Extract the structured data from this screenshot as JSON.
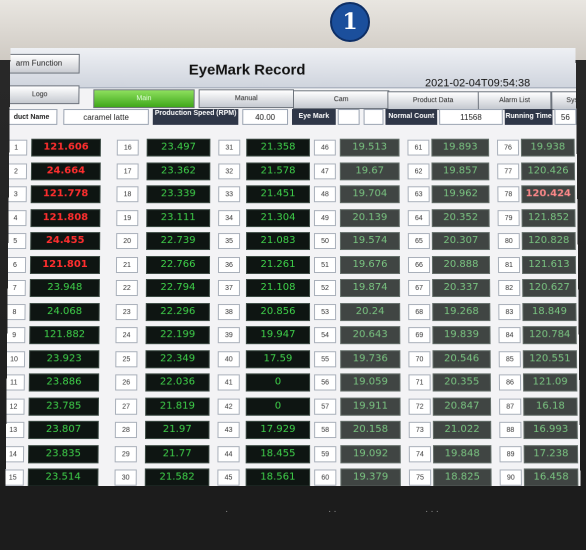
{
  "badge": "1",
  "header": {
    "function_button": "arm Function",
    "title": "EyeMark Record",
    "datetime": "2021-02-04T09:54:38"
  },
  "nav": [
    "Logo",
    "Main",
    "Manual",
    "Cam",
    "Product Data",
    "Alarm List",
    "Sys"
  ],
  "info": {
    "product_name_label": "duct Name",
    "product_name_value": "caramel latte",
    "speed_label": "Production Speed (RPM)",
    "speed_value": "40.00",
    "eyemark_label": "Eye Mark",
    "normal_count_label": "Normal Count",
    "normal_count_value": "11568",
    "running_time_label": "Running Time",
    "running_time_value": "56"
  },
  "columns": [
    {
      "rows": [
        {
          "n": "1",
          "v": "121.606",
          "alarm": true
        },
        {
          "n": "2",
          "v": "24.664",
          "alarm": true
        },
        {
          "n": "3",
          "v": "121.778",
          "alarm": true
        },
        {
          "n": "4",
          "v": "121.808",
          "alarm": true
        },
        {
          "n": "5",
          "v": "24.455",
          "alarm": true
        },
        {
          "n": "6",
          "v": "121.801",
          "alarm": true
        },
        {
          "n": "7",
          "v": "23.948",
          "alarm": false
        },
        {
          "n": "8",
          "v": "24.068",
          "alarm": false
        },
        {
          "n": "9",
          "v": "121.882",
          "alarm": false
        },
        {
          "n": "10",
          "v": "23.923",
          "alarm": false
        },
        {
          "n": "11",
          "v": "23.886",
          "alarm": false
        },
        {
          "n": "12",
          "v": "23.785",
          "alarm": false
        },
        {
          "n": "13",
          "v": "23.807",
          "alarm": false
        },
        {
          "n": "14",
          "v": "23.835",
          "alarm": false
        },
        {
          "n": "15",
          "v": "23.514",
          "alarm": false
        }
      ]
    },
    {
      "rows": [
        {
          "n": "16",
          "v": "23.497",
          "alarm": false
        },
        {
          "n": "17",
          "v": "23.362",
          "alarm": false
        },
        {
          "n": "18",
          "v": "23.339",
          "alarm": false
        },
        {
          "n": "19",
          "v": "23.111",
          "alarm": false
        },
        {
          "n": "20",
          "v": "22.739",
          "alarm": false
        },
        {
          "n": "21",
          "v": "22.766",
          "alarm": false
        },
        {
          "n": "22",
          "v": "22.794",
          "alarm": false
        },
        {
          "n": "23",
          "v": "22.296",
          "alarm": false
        },
        {
          "n": "24",
          "v": "22.199",
          "alarm": false
        },
        {
          "n": "25",
          "v": "22.349",
          "alarm": false
        },
        {
          "n": "26",
          "v": "22.036",
          "alarm": false
        },
        {
          "n": "27",
          "v": "21.819",
          "alarm": false
        },
        {
          "n": "28",
          "v": "21.97",
          "alarm": false
        },
        {
          "n": "29",
          "v": "21.77",
          "alarm": false
        },
        {
          "n": "30",
          "v": "21.582",
          "alarm": false
        }
      ]
    },
    {
      "rows": [
        {
          "n": "31",
          "v": "21.358",
          "alarm": false
        },
        {
          "n": "32",
          "v": "21.578",
          "alarm": false
        },
        {
          "n": "33",
          "v": "21.451",
          "alarm": false
        },
        {
          "n": "34",
          "v": "21.304",
          "alarm": false
        },
        {
          "n": "35",
          "v": "21.083",
          "alarm": false
        },
        {
          "n": "36",
          "v": "21.261",
          "alarm": false
        },
        {
          "n": "37",
          "v": "21.108",
          "alarm": false
        },
        {
          "n": "38",
          "v": "20.856",
          "alarm": false
        },
        {
          "n": "39",
          "v": "19.947",
          "alarm": false
        },
        {
          "n": "40",
          "v": "17.59",
          "alarm": false
        },
        {
          "n": "41",
          "v": "0",
          "alarm": false
        },
        {
          "n": "42",
          "v": "0",
          "alarm": false
        },
        {
          "n": "43",
          "v": "17.929",
          "alarm": false
        },
        {
          "n": "44",
          "v": "18.455",
          "alarm": false
        },
        {
          "n": "45",
          "v": "18.561",
          "alarm": false
        }
      ]
    },
    {
      "rows": [
        {
          "n": "46",
          "v": "19.513",
          "alarm": false
        },
        {
          "n": "47",
          "v": "19.67",
          "alarm": false
        },
        {
          "n": "48",
          "v": "19.704",
          "alarm": false
        },
        {
          "n": "49",
          "v": "20.139",
          "alarm": false
        },
        {
          "n": "50",
          "v": "19.574",
          "alarm": false
        },
        {
          "n": "51",
          "v": "19.676",
          "alarm": false
        },
        {
          "n": "52",
          "v": "19.874",
          "alarm": false
        },
        {
          "n": "53",
          "v": "20.24",
          "alarm": false
        },
        {
          "n": "54",
          "v": "20.643",
          "alarm": false
        },
        {
          "n": "55",
          "v": "19.736",
          "alarm": false
        },
        {
          "n": "56",
          "v": "19.059",
          "alarm": false
        },
        {
          "n": "57",
          "v": "19.911",
          "alarm": false
        },
        {
          "n": "58",
          "v": "20.158",
          "alarm": false
        },
        {
          "n": "59",
          "v": "19.092",
          "alarm": false
        },
        {
          "n": "60",
          "v": "19.379",
          "alarm": false
        }
      ]
    },
    {
      "rows": [
        {
          "n": "61",
          "v": "19.893",
          "alarm": false
        },
        {
          "n": "62",
          "v": "19.857",
          "alarm": false
        },
        {
          "n": "63",
          "v": "19.962",
          "alarm": false
        },
        {
          "n": "64",
          "v": "20.352",
          "alarm": false
        },
        {
          "n": "65",
          "v": "20.307",
          "alarm": false
        },
        {
          "n": "66",
          "v": "20.888",
          "alarm": false
        },
        {
          "n": "67",
          "v": "20.337",
          "alarm": false
        },
        {
          "n": "68",
          "v": "19.268",
          "alarm": false
        },
        {
          "n": "69",
          "v": "19.839",
          "alarm": false
        },
        {
          "n": "70",
          "v": "20.546",
          "alarm": false
        },
        {
          "n": "71",
          "v": "20.355",
          "alarm": false
        },
        {
          "n": "72",
          "v": "20.847",
          "alarm": false
        },
        {
          "n": "73",
          "v": "21.022",
          "alarm": false
        },
        {
          "n": "74",
          "v": "19.848",
          "alarm": false
        },
        {
          "n": "75",
          "v": "18.825",
          "alarm": false
        }
      ]
    },
    {
      "rows": [
        {
          "n": "76",
          "v": "19.938",
          "alarm": false
        },
        {
          "n": "77",
          "v": "120.426",
          "alarm": false
        },
        {
          "n": "78",
          "v": "120.424",
          "alarm": true
        },
        {
          "n": "79",
          "v": "121.852",
          "alarm": false
        },
        {
          "n": "80",
          "v": "120.828",
          "alarm": false
        },
        {
          "n": "81",
          "v": "121.613",
          "alarm": false
        },
        {
          "n": "82",
          "v": "120.627",
          "alarm": false
        },
        {
          "n": "83",
          "v": "18.849",
          "alarm": false
        },
        {
          "n": "84",
          "v": "120.784",
          "alarm": false
        },
        {
          "n": "85",
          "v": "120.551",
          "alarm": false
        },
        {
          "n": "86",
          "v": "121.09",
          "alarm": false
        },
        {
          "n": "87",
          "v": "16.18",
          "alarm": false
        },
        {
          "n": "88",
          "v": "16.993",
          "alarm": false
        },
        {
          "n": "89",
          "v": "17.238",
          "alarm": false
        },
        {
          "n": "90",
          "v": "16.458",
          "alarm": false
        }
      ]
    }
  ],
  "colors": {
    "ok": "#3fd14a",
    "alarm": "#ff2e2e",
    "cell_bg": "#0e1512",
    "nav_active": "#3fa71a"
  }
}
